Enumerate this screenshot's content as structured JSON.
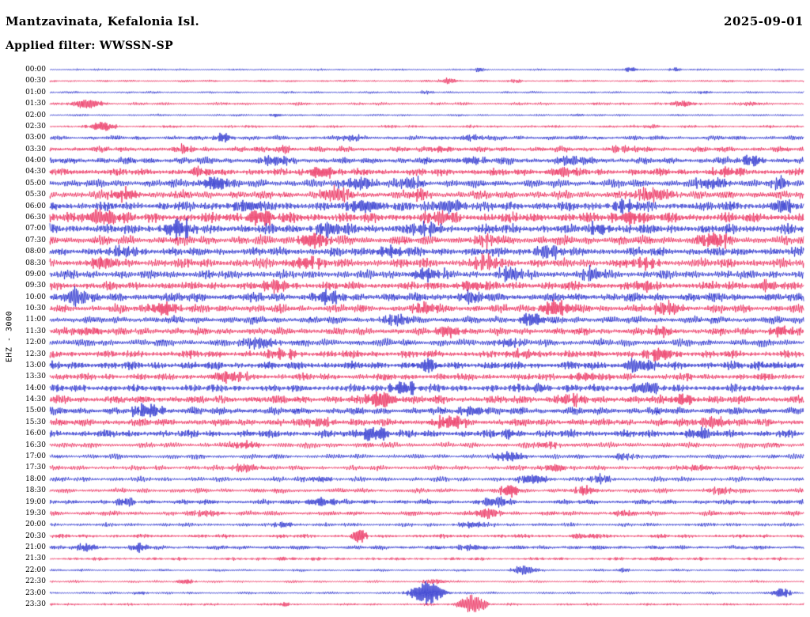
{
  "header": {
    "station": "Mantzavinata, Kefalonia Isl.",
    "date": "2025-09-01",
    "filter_label": "Applied filter: WWSSN-SP"
  },
  "axis": {
    "left_label": "EHZ - 3000"
  },
  "chart_data": {
    "type": "line",
    "subtype": "seismogram-helicorder",
    "title": "Mantzavinata, Kefalonia Isl.",
    "date": "2025-09-01",
    "filter": "WWSSN-SP",
    "channel_gain_label": "EHZ - 3000",
    "row_interval_minutes": 30,
    "rows_count": 48,
    "legend_position": "none",
    "grid": false,
    "colors": {
      "blue": "#1019c8",
      "red": "#e8174b"
    },
    "rows": [
      {
        "time": "00:00",
        "color": "blue",
        "amp": 0.7,
        "bursts": [
          [
            0.57,
            0.009,
            2
          ],
          [
            0.77,
            0.01,
            2.5
          ],
          [
            0.83,
            0.008,
            2
          ]
        ]
      },
      {
        "time": "00:30",
        "color": "red",
        "amp": 0.8,
        "bursts": [
          [
            0.53,
            0.012,
            3.5
          ],
          [
            0.62,
            0.008,
            2
          ]
        ]
      },
      {
        "time": "01:00",
        "color": "blue",
        "amp": 0.8,
        "bursts": [
          [
            0.5,
            0.01,
            1.5
          ],
          [
            0.87,
            0.01,
            1.6
          ]
        ]
      },
      {
        "time": "01:30",
        "color": "red",
        "amp": 1.1,
        "bursts": [
          [
            0.05,
            0.02,
            5
          ],
          [
            0.84,
            0.02,
            2.5
          ],
          [
            0.93,
            0.01,
            2
          ]
        ]
      },
      {
        "time": "02:00",
        "color": "blue",
        "amp": 0.8,
        "bursts": [
          [
            0.3,
            0.01,
            1.5
          ],
          [
            0.7,
            0.012,
            1.2
          ]
        ]
      },
      {
        "time": "02:30",
        "color": "red",
        "amp": 1.0,
        "bursts": [
          [
            0.07,
            0.015,
            5
          ],
          [
            0.8,
            0.012,
            2.2
          ]
        ]
      },
      {
        "time": "03:00",
        "color": "blue",
        "amp": 1.7,
        "bursts": [
          [
            0.23,
            0.012,
            4
          ],
          [
            0.4,
            0.015,
            3
          ],
          [
            0.56,
            0.02,
            3
          ]
        ]
      },
      {
        "time": "03:30",
        "color": "red",
        "amp": 2.1,
        "bursts": [
          [
            0.18,
            0.015,
            3
          ],
          [
            0.31,
            0.012,
            4
          ],
          [
            0.52,
            0.015,
            3
          ],
          [
            0.76,
            0.02,
            3
          ]
        ]
      },
      {
        "time": "04:00",
        "color": "blue",
        "amp": 2.5,
        "bursts": [
          [
            0.3,
            0.02,
            5
          ],
          [
            0.56,
            0.015,
            4
          ],
          [
            0.69,
            0.02,
            4
          ],
          [
            0.93,
            0.015,
            5
          ]
        ]
      },
      {
        "time": "04:30",
        "color": "red",
        "amp": 2.7,
        "bursts": [
          [
            0.2,
            0.015,
            4
          ],
          [
            0.36,
            0.02,
            5
          ],
          [
            0.68,
            0.015,
            6
          ],
          [
            0.9,
            0.02,
            4
          ]
        ]
      },
      {
        "time": "05:00",
        "color": "blue",
        "amp": 3.1,
        "bursts": [
          [
            0.22,
            0.02,
            6
          ],
          [
            0.41,
            0.02,
            7
          ],
          [
            0.48,
            0.015,
            6
          ],
          [
            0.88,
            0.02,
            5
          ],
          [
            0.97,
            0.01,
            6
          ]
        ]
      },
      {
        "time": "05:30",
        "color": "red",
        "amp": 3.1,
        "bursts": [
          [
            0.1,
            0.02,
            5
          ],
          [
            0.38,
            0.02,
            7
          ],
          [
            0.49,
            0.015,
            5
          ],
          [
            0.8,
            0.03,
            6
          ]
        ]
      },
      {
        "time": "06:00",
        "color": "blue",
        "amp": 3.5,
        "bursts": [
          [
            0.26,
            0.02,
            5
          ],
          [
            0.42,
            0.02,
            7
          ],
          [
            0.53,
            0.02,
            7
          ],
          [
            0.76,
            0.02,
            5
          ],
          [
            0.97,
            0.015,
            6
          ]
        ]
      },
      {
        "time": "06:30",
        "color": "red",
        "amp": 3.7,
        "bursts": [
          [
            0.07,
            0.025,
            8
          ],
          [
            0.28,
            0.02,
            7
          ],
          [
            0.52,
            0.02,
            6
          ],
          [
            0.77,
            0.02,
            6
          ]
        ]
      },
      {
        "time": "07:00",
        "color": "blue",
        "amp": 3.7,
        "bursts": [
          [
            0.17,
            0.02,
            8
          ],
          [
            0.37,
            0.02,
            6
          ],
          [
            0.5,
            0.02,
            6
          ],
          [
            0.73,
            0.015,
            5
          ]
        ]
      },
      {
        "time": "07:30",
        "color": "red",
        "amp": 3.5,
        "bursts": [
          [
            0.35,
            0.02,
            7
          ],
          [
            0.58,
            0.02,
            5
          ],
          [
            0.88,
            0.02,
            7
          ]
        ]
      },
      {
        "time": "08:00",
        "color": "blue",
        "amp": 3.3,
        "bursts": [
          [
            0.1,
            0.02,
            5
          ],
          [
            0.45,
            0.02,
            5
          ],
          [
            0.66,
            0.02,
            6
          ]
        ]
      },
      {
        "time": "08:30",
        "color": "red",
        "amp": 3.5,
        "bursts": [
          [
            0.07,
            0.02,
            6
          ],
          [
            0.34,
            0.02,
            5
          ],
          [
            0.58,
            0.02,
            7
          ],
          [
            0.79,
            0.02,
            5
          ]
        ]
      },
      {
        "time": "09:00",
        "color": "blue",
        "amp": 3.3,
        "bursts": [
          [
            0.5,
            0.02,
            6
          ],
          [
            0.61,
            0.015,
            7
          ],
          [
            0.72,
            0.015,
            6
          ]
        ]
      },
      {
        "time": "09:30",
        "color": "red",
        "amp": 3.1,
        "bursts": [
          [
            0.3,
            0.02,
            6
          ],
          [
            0.56,
            0.02,
            5
          ],
          [
            0.79,
            0.015,
            5
          ],
          [
            0.95,
            0.015,
            5
          ]
        ]
      },
      {
        "time": "10:00",
        "color": "blue",
        "amp": 3.3,
        "bursts": [
          [
            0.035,
            0.015,
            9
          ],
          [
            0.37,
            0.02,
            6
          ],
          [
            0.56,
            0.02,
            5
          ]
        ]
      },
      {
        "time": "10:30",
        "color": "red",
        "amp": 3.1,
        "bursts": [
          [
            0.15,
            0.02,
            6
          ],
          [
            0.5,
            0.02,
            5
          ],
          [
            0.67,
            0.02,
            7
          ],
          [
            0.82,
            0.02,
            6
          ]
        ]
      },
      {
        "time": "11:00",
        "color": "blue",
        "amp": 2.8,
        "bursts": [
          [
            0.46,
            0.02,
            5
          ],
          [
            0.64,
            0.015,
            7
          ]
        ]
      },
      {
        "time": "11:30",
        "color": "red",
        "amp": 2.8,
        "bursts": [
          [
            0.05,
            0.02,
            4
          ],
          [
            0.53,
            0.02,
            5
          ],
          [
            0.81,
            0.02,
            4
          ],
          [
            0.97,
            0.015,
            5
          ]
        ]
      },
      {
        "time": "12:00",
        "color": "blue",
        "amp": 2.8,
        "bursts": [
          [
            0.28,
            0.02,
            6
          ],
          [
            0.61,
            0.02,
            4
          ]
        ]
      },
      {
        "time": "12:30",
        "color": "red",
        "amp": 2.8,
        "bursts": [
          [
            0.31,
            0.02,
            4
          ],
          [
            0.63,
            0.02,
            4
          ],
          [
            0.81,
            0.02,
            6
          ]
        ]
      },
      {
        "time": "13:00",
        "color": "blue",
        "amp": 3.0,
        "bursts": [
          [
            0.5,
            0.02,
            5
          ],
          [
            0.78,
            0.015,
            8
          ],
          [
            0.95,
            0.015,
            4
          ]
        ]
      },
      {
        "time": "13:30",
        "color": "red",
        "amp": 2.6,
        "bursts": [
          [
            0.24,
            0.02,
            6
          ],
          [
            0.71,
            0.02,
            4
          ]
        ]
      },
      {
        "time": "14:00",
        "color": "blue",
        "amp": 2.8,
        "bursts": [
          [
            0.47,
            0.02,
            6
          ],
          [
            0.65,
            0.015,
            4
          ],
          [
            0.79,
            0.02,
            6
          ]
        ]
      },
      {
        "time": "14:30",
        "color": "red",
        "amp": 3.0,
        "bursts": [
          [
            0.44,
            0.02,
            9
          ],
          [
            0.69,
            0.02,
            5
          ],
          [
            0.84,
            0.015,
            5
          ]
        ]
      },
      {
        "time": "15:00",
        "color": "blue",
        "amp": 2.8,
        "bursts": [
          [
            0.13,
            0.02,
            7
          ],
          [
            0.56,
            0.02,
            5
          ]
        ]
      },
      {
        "time": "15:30",
        "color": "red",
        "amp": 2.8,
        "bursts": [
          [
            0.36,
            0.02,
            4
          ],
          [
            0.53,
            0.02,
            6
          ],
          [
            0.88,
            0.02,
            6
          ]
        ]
      },
      {
        "time": "16:00",
        "color": "blue",
        "amp": 2.8,
        "bursts": [
          [
            0.43,
            0.02,
            7
          ],
          [
            0.61,
            0.015,
            4
          ],
          [
            0.86,
            0.02,
            5
          ]
        ]
      },
      {
        "time": "16:30",
        "color": "red",
        "amp": 2.1,
        "bursts": [
          [
            0.26,
            0.02,
            3
          ],
          [
            0.66,
            0.02,
            3
          ]
        ]
      },
      {
        "time": "17:00",
        "color": "blue",
        "amp": 1.8,
        "bursts": [
          [
            0.61,
            0.02,
            5
          ],
          [
            0.76,
            0.015,
            3
          ]
        ]
      },
      {
        "time": "17:30",
        "color": "red",
        "amp": 1.8,
        "bursts": [
          [
            0.26,
            0.02,
            4
          ],
          [
            0.67,
            0.015,
            4
          ],
          [
            0.86,
            0.02,
            3
          ]
        ]
      },
      {
        "time": "18:00",
        "color": "blue",
        "amp": 1.8,
        "bursts": [
          [
            0.36,
            0.015,
            3
          ],
          [
            0.64,
            0.02,
            5
          ],
          [
            0.73,
            0.015,
            4
          ]
        ]
      },
      {
        "time": "18:30",
        "color": "red",
        "amp": 1.8,
        "bursts": [
          [
            0.61,
            0.012,
            6
          ],
          [
            0.71,
            0.015,
            4
          ],
          [
            0.89,
            0.02,
            3
          ]
        ]
      },
      {
        "time": "19:00",
        "color": "blue",
        "amp": 1.8,
        "bursts": [
          [
            0.1,
            0.015,
            4
          ],
          [
            0.36,
            0.02,
            4
          ],
          [
            0.59,
            0.02,
            5
          ]
        ]
      },
      {
        "time": "19:30",
        "color": "red",
        "amp": 1.8,
        "bursts": [
          [
            0.21,
            0.02,
            3
          ],
          [
            0.58,
            0.015,
            6
          ],
          [
            0.76,
            0.015,
            3
          ]
        ]
      },
      {
        "time": "20:00",
        "color": "blue",
        "amp": 1.4,
        "bursts": [
          [
            0.31,
            0.015,
            3
          ],
          [
            0.56,
            0.02,
            3
          ]
        ]
      },
      {
        "time": "20:30",
        "color": "red",
        "amp": 1.4,
        "bursts": [
          [
            0.41,
            0.012,
            6
          ],
          [
            0.71,
            0.015,
            3
          ]
        ]
      },
      {
        "time": "21:00",
        "color": "blue",
        "amp": 1.6,
        "bursts": [
          [
            0.05,
            0.015,
            4
          ],
          [
            0.12,
            0.012,
            4
          ],
          [
            0.56,
            0.02,
            3
          ]
        ]
      },
      {
        "time": "21:30",
        "color": "red",
        "amp": 1.1,
        "bursts": [
          [
            0.31,
            0.015,
            2
          ],
          [
            0.81,
            0.015,
            2
          ]
        ]
      },
      {
        "time": "22:00",
        "color": "blue",
        "amp": 0.9,
        "bursts": [
          [
            0.63,
            0.015,
            5
          ],
          [
            0.76,
            0.01,
            2
          ]
        ]
      },
      {
        "time": "22:30",
        "color": "red",
        "amp": 0.9,
        "bursts": [
          [
            0.18,
            0.012,
            3
          ],
          [
            0.51,
            0.015,
            3
          ]
        ]
      },
      {
        "time": "23:00",
        "color": "blue",
        "amp": 0.9,
        "bursts": [
          [
            0.12,
            0.01,
            2
          ],
          [
            0.5,
            0.02,
            11
          ],
          [
            0.97,
            0.012,
            5
          ]
        ]
      },
      {
        "time": "23:30",
        "color": "red",
        "amp": 0.9,
        "bursts": [
          [
            0.31,
            0.01,
            2
          ],
          [
            0.56,
            0.018,
            9
          ]
        ]
      }
    ]
  }
}
